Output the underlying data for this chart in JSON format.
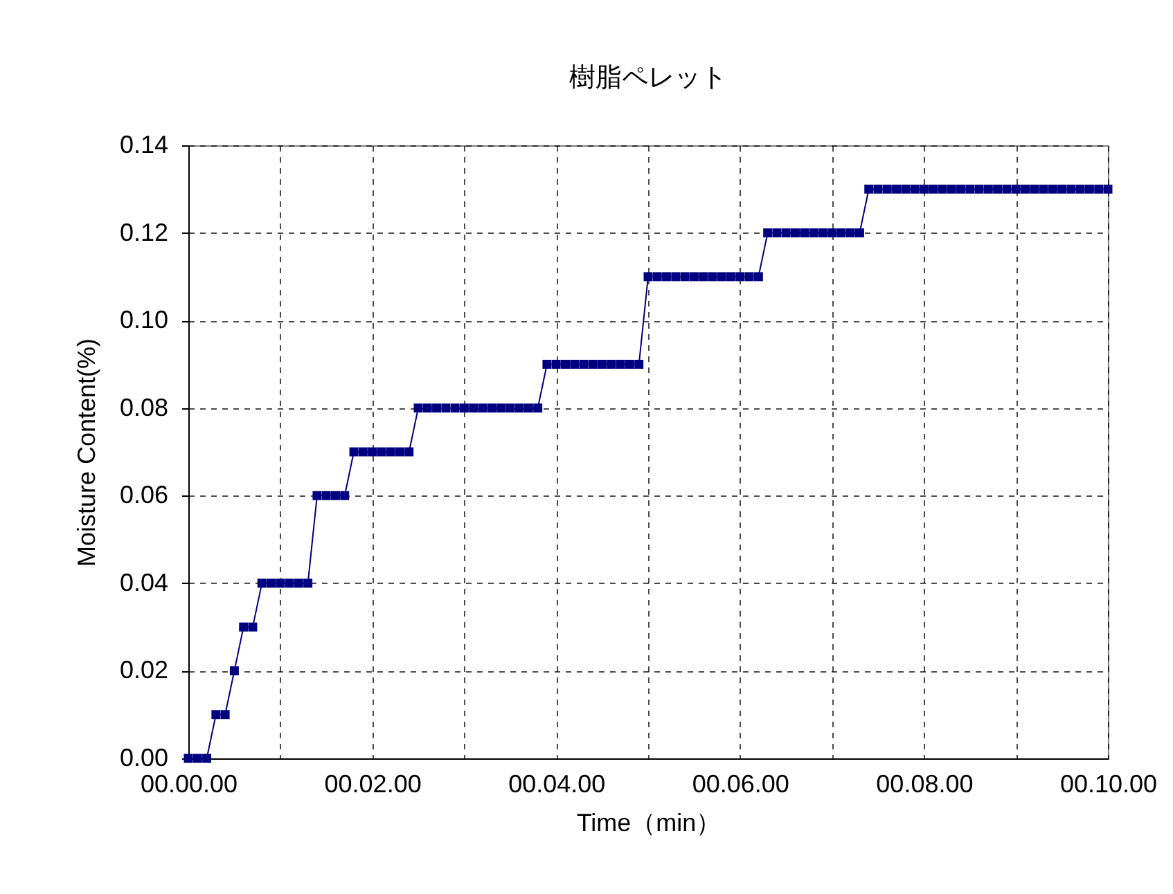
{
  "chart_data": {
    "type": "line",
    "title": "樹脂ペレット",
    "xlabel": "Time（min）",
    "ylabel": "Moisture Content(%)",
    "categories": [
      "00.00.00",
      null,
      null,
      null,
      null,
      null,
      null,
      null,
      null,
      null,
      null,
      null,
      null,
      null,
      null,
      null,
      null,
      null,
      null,
      null,
      "00.02.00",
      null,
      null,
      null,
      null,
      null,
      null,
      null,
      null,
      null,
      null,
      null,
      null,
      null,
      null,
      null,
      null,
      null,
      null,
      null,
      "00.04.00",
      null,
      null,
      null,
      null,
      null,
      null,
      null,
      null,
      null,
      null,
      null,
      null,
      null,
      null,
      null,
      null,
      null,
      null,
      null,
      "00.06.00",
      null,
      null,
      null,
      null,
      null,
      null,
      null,
      null,
      null,
      null,
      null,
      null,
      null,
      null,
      null,
      null,
      null,
      null,
      null,
      "00.08.00",
      null,
      null,
      null,
      null,
      null,
      null,
      null,
      null,
      null,
      null,
      null,
      null,
      null,
      null,
      null,
      null,
      null,
      null,
      null,
      "00.10.00"
    ],
    "values": [
      0,
      0,
      0,
      0.01,
      0.01,
      0.02,
      0.03,
      0.03,
      0.04,
      0.04,
      0.04,
      0.04,
      0.04,
      0.04,
      0.06,
      0.06,
      0.06,
      0.06,
      0.07,
      0.07,
      0.07,
      0.07,
      0.07,
      0.07,
      0.07,
      0.08,
      0.08,
      0.08,
      0.08,
      0.08,
      0.08,
      0.08,
      0.08,
      0.08,
      0.08,
      0.08,
      0.08,
      0.08,
      0.08,
      0.09,
      0.09,
      0.09,
      0.09,
      0.09,
      0.09,
      0.09,
      0.09,
      0.09,
      0.09,
      0.09,
      0.11,
      0.11,
      0.11,
      0.11,
      0.11,
      0.11,
      0.11,
      0.11,
      0.11,
      0.11,
      0.11,
      0.11,
      0.11,
      0.12,
      0.12,
      0.12,
      0.12,
      0.12,
      0.12,
      0.12,
      0.12,
      0.12,
      0.12,
      0.12,
      0.13,
      0.13,
      0.13,
      0.13,
      0.13,
      0.13,
      0.13,
      0.13,
      0.13,
      0.13,
      0.13,
      0.13,
      0.13,
      0.13,
      0.13,
      0.13,
      0.13,
      0.13,
      0.13,
      0.13,
      0.13,
      0.13,
      0.13,
      0.13,
      0.13,
      0.13,
      0.13
    ],
    "color": "#000080",
    "marker": "square",
    "line_style": "solid",
    "grid": true,
    "ylim": [
      0,
      0.14
    ],
    "yticks": [
      {
        "value": 0,
        "label": "0.00"
      },
      {
        "value": 0.02,
        "label": "0.02"
      },
      {
        "value": 0.04,
        "label": "0.04"
      },
      {
        "value": 0.06,
        "label": "0.06"
      },
      {
        "value": 0.08,
        "label": "0.08"
      },
      {
        "value": 0.1,
        "label": "0.10"
      },
      {
        "value": 0.12,
        "label": "0.12"
      },
      {
        "value": 0.14,
        "label": "0.14"
      }
    ]
  }
}
